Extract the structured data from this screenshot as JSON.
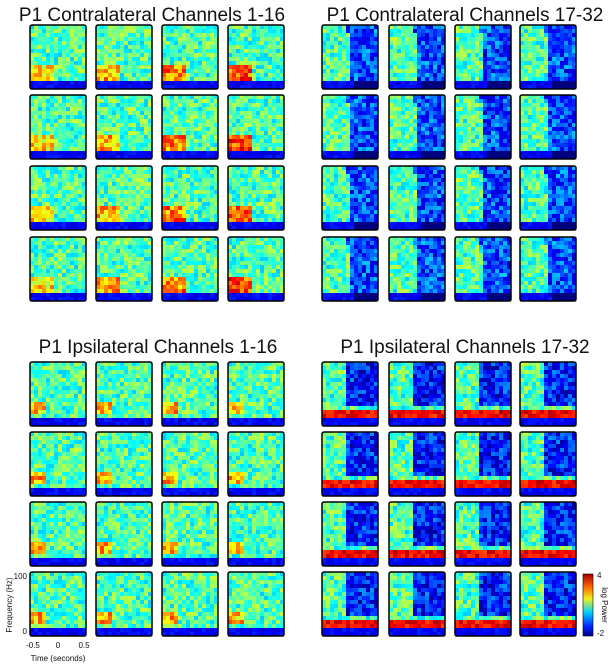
{
  "panels": [
    {
      "title": "P1 Contralateral Channels 1-16"
    },
    {
      "title": "P1 Contralateral Channels 17-32"
    },
    {
      "title": "P1 Ipsilateral Channels 1-16"
    },
    {
      "title": "P1 Ipsilateral Channels 17-32"
    }
  ],
  "y_axis": {
    "label": "Frequency (Hz)",
    "ticks": [
      "100",
      "0"
    ]
  },
  "x_axis": {
    "label": "Time (seconds)",
    "ticks": [
      "-0.5",
      "0",
      "0.5"
    ]
  },
  "colorbar": {
    "label": "log Power",
    "ticks": [
      "4",
      "-2"
    ]
  }
}
